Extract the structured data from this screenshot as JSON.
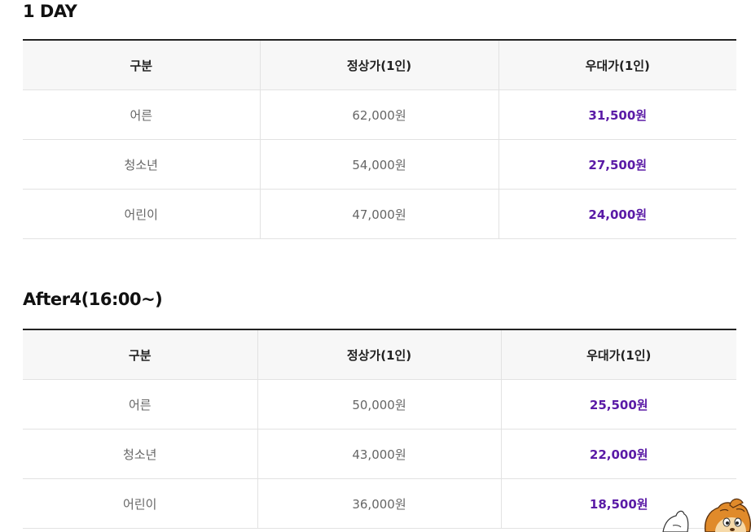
{
  "sections": [
    {
      "title": "1 DAY",
      "headers": [
        "구분",
        "정상가(1인)",
        "우대가(1인)"
      ],
      "rows": [
        {
          "category": "어른",
          "regular": "62,000원",
          "discount": "31,500원"
        },
        {
          "category": "청소년",
          "regular": "54,000원",
          "discount": "27,500원"
        },
        {
          "category": "어린이",
          "regular": "47,000원",
          "discount": "24,000원"
        }
      ]
    },
    {
      "title": "After4(16:00~)",
      "headers": [
        "구분",
        "정상가(1인)",
        "우대가(1인)"
      ],
      "rows": [
        {
          "category": "어른",
          "regular": "50,000원",
          "discount": "25,500원"
        },
        {
          "category": "청소년",
          "regular": "43,000원",
          "discount": "22,000원"
        },
        {
          "category": "어린이",
          "regular": "36,000원",
          "discount": "18,500원"
        }
      ]
    }
  ],
  "colors": {
    "discount_text": "#5a1aa6",
    "header_bg": "#f7f7f7",
    "top_border": "#222222",
    "row_border": "#e2e2e2"
  },
  "icons": {
    "mascot": "cartoon-mascot-icon"
  }
}
